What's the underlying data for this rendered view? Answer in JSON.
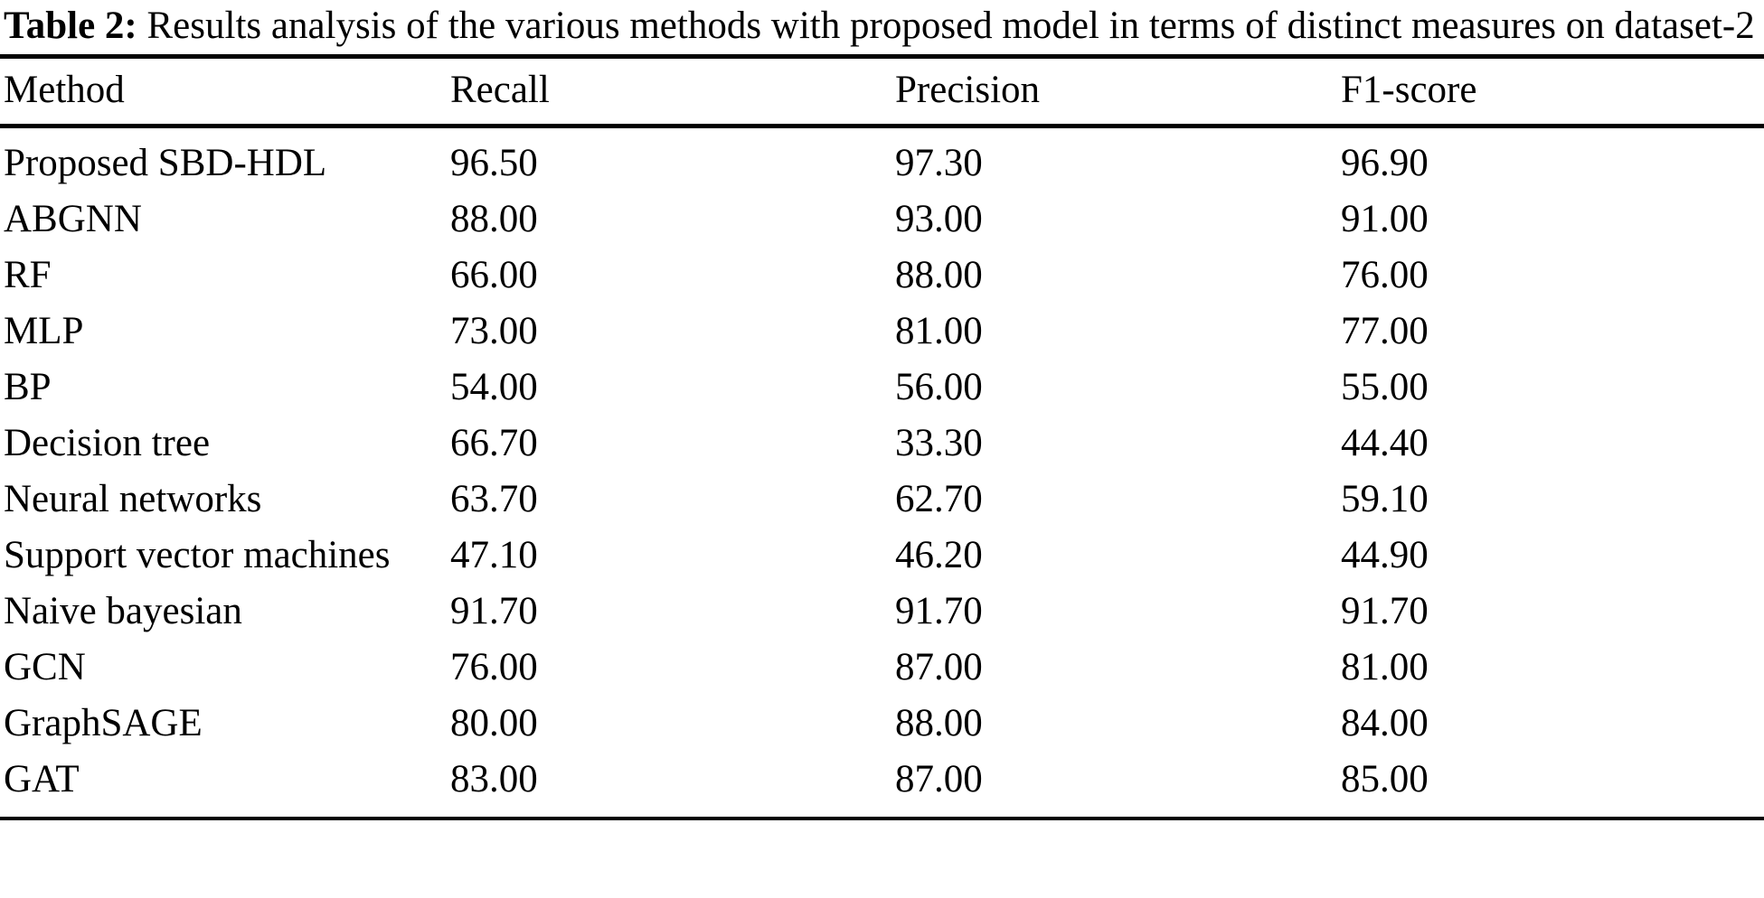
{
  "caption": {
    "label": "Table 2:",
    "text": " Results analysis of the various methods with proposed model in terms of distinct measures on dataset-2"
  },
  "table": {
    "columns": [
      "Method",
      "Recall",
      "Precision",
      "F1-score"
    ],
    "rows": [
      {
        "method": "Proposed SBD-HDL",
        "recall": "96.50",
        "precision": "97.30",
        "f1": "96.90"
      },
      {
        "method": "ABGNN",
        "recall": "88.00",
        "precision": "93.00",
        "f1": "91.00"
      },
      {
        "method": "RF",
        "recall": "66.00",
        "precision": "88.00",
        "f1": "76.00"
      },
      {
        "method": "MLP",
        "recall": "73.00",
        "precision": "81.00",
        "f1": "77.00"
      },
      {
        "method": "BP",
        "recall": "54.00",
        "precision": "56.00",
        "f1": "55.00"
      },
      {
        "method": "Decision tree",
        "recall": "66.70",
        "precision": "33.30",
        "f1": "44.40"
      },
      {
        "method": "Neural networks",
        "recall": "63.70",
        "precision": "62.70",
        "f1": "59.10"
      },
      {
        "method": "Support vector machines",
        "recall": "47.10",
        "precision": "46.20",
        "f1": "44.90"
      },
      {
        "method": "Naive bayesian",
        "recall": "91.70",
        "precision": "91.70",
        "f1": "91.70"
      },
      {
        "method": "GCN",
        "recall": "76.00",
        "precision": "87.00",
        "f1": "81.00"
      },
      {
        "method": "GraphSAGE",
        "recall": "80.00",
        "precision": "88.00",
        "f1": "84.00"
      },
      {
        "method": "GAT",
        "recall": "83.00",
        "precision": "87.00",
        "f1": "85.00"
      }
    ]
  },
  "colors": {
    "text": "#000000",
    "background": "#ffffff",
    "rule": "#000000"
  }
}
